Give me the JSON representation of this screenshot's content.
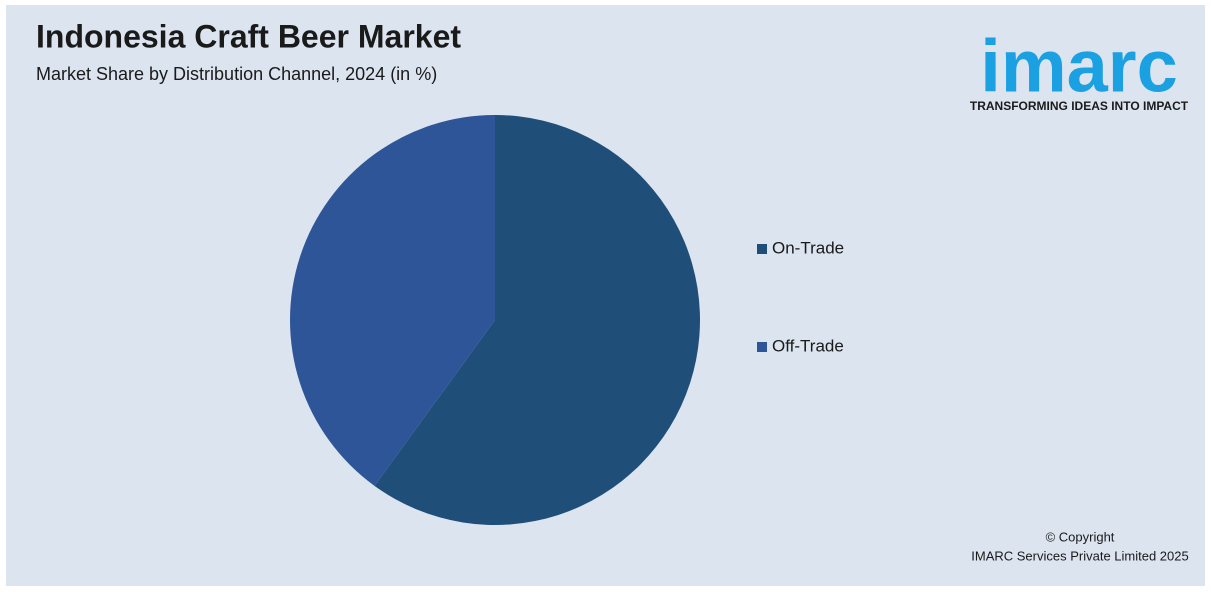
{
  "chart_data": {
    "type": "pie",
    "title": "Indonesia Craft Beer Market",
    "subtitle": "Market Share by Distribution Channel, 2024 (in %)",
    "categories": [
      "On-Trade",
      "Off-Trade"
    ],
    "values": [
      60,
      40
    ],
    "colors": [
      "#1f4e79",
      "#2e5597"
    ],
    "legend": "right"
  },
  "logo": {
    "name": "imarc",
    "tagline": "TRANSFORMING IDEAS INTO IMPACT"
  },
  "copyright": [
    "© Copyright",
    "IMARC Services Private Limited 2025"
  ]
}
